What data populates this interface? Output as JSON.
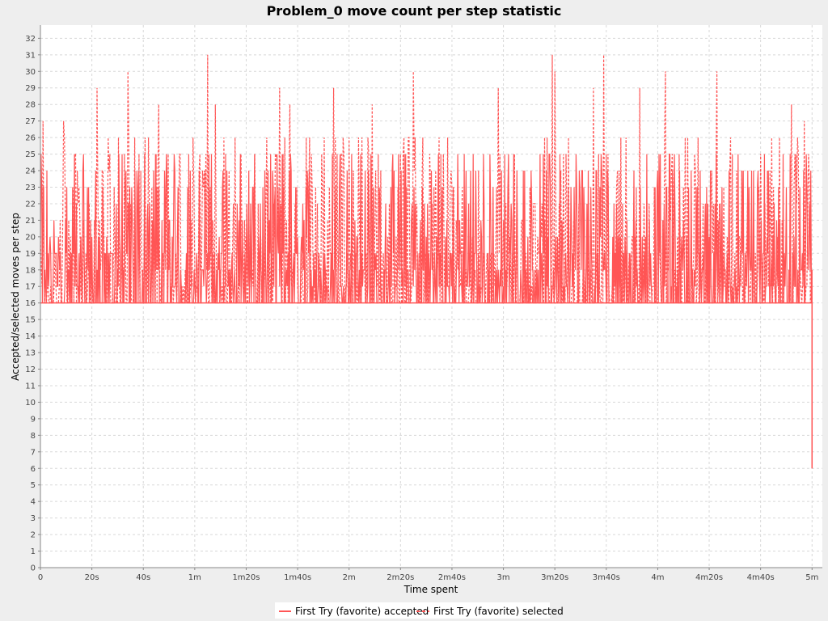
{
  "chart_data": {
    "type": "line",
    "title": "Problem_0 move count per step statistic",
    "xlabel": "Time spent",
    "ylabel": "Accepted/selected moves per step",
    "xlim": [
      0,
      304
    ],
    "ylim": [
      0,
      32.8
    ],
    "grid": true,
    "legend_position": "bottom",
    "x_ticks": [
      {
        "value": 0,
        "label": "0"
      },
      {
        "value": 20,
        "label": "20s"
      },
      {
        "value": 40,
        "label": "40s"
      },
      {
        "value": 60,
        "label": "1m"
      },
      {
        "value": 80,
        "label": "1m20s"
      },
      {
        "value": 100,
        "label": "1m40s"
      },
      {
        "value": 120,
        "label": "2m"
      },
      {
        "value": 140,
        "label": "2m20s"
      },
      {
        "value": 160,
        "label": "2m40s"
      },
      {
        "value": 180,
        "label": "3m"
      },
      {
        "value": 200,
        "label": "3m20s"
      },
      {
        "value": 220,
        "label": "3m40s"
      },
      {
        "value": 240,
        "label": "4m"
      },
      {
        "value": 260,
        "label": "4m20s"
      },
      {
        "value": 280,
        "label": "4m40s"
      },
      {
        "value": 300,
        "label": "5m"
      }
    ],
    "y_ticks": [
      0,
      1,
      2,
      3,
      4,
      5,
      6,
      7,
      8,
      9,
      10,
      11,
      12,
      13,
      14,
      15,
      16,
      17,
      18,
      19,
      20,
      21,
      22,
      23,
      24,
      25,
      26,
      27,
      28,
      29,
      30,
      31,
      32
    ],
    "series": [
      {
        "name": "First Try (favorite) accepted",
        "color": "#ff5555",
        "style": "solid",
        "baseline": 16,
        "typical_range": [
          16,
          25
        ],
        "x_end": 300,
        "final_value": 6
      },
      {
        "name": "First Try (favorite) selected",
        "color": "#ff5555",
        "style": "dashed",
        "baseline": 16,
        "typical_range": [
          16,
          26
        ],
        "x_end": 300,
        "peaks": [
          {
            "x": 1,
            "y": 27
          },
          {
            "x": 9,
            "y": 27
          },
          {
            "x": 22,
            "y": 29
          },
          {
            "x": 34,
            "y": 30
          },
          {
            "x": 46,
            "y": 28
          },
          {
            "x": 65,
            "y": 31
          },
          {
            "x": 68,
            "y": 28
          },
          {
            "x": 93,
            "y": 29
          },
          {
            "x": 97,
            "y": 28
          },
          {
            "x": 114,
            "y": 29
          },
          {
            "x": 129,
            "y": 28
          },
          {
            "x": 145,
            "y": 30
          },
          {
            "x": 178,
            "y": 29
          },
          {
            "x": 199,
            "y": 31
          },
          {
            "x": 200,
            "y": 30
          },
          {
            "x": 219,
            "y": 31
          },
          {
            "x": 215,
            "y": 29
          },
          {
            "x": 233,
            "y": 29
          },
          {
            "x": 243,
            "y": 30
          },
          {
            "x": 263,
            "y": 30
          },
          {
            "x": 292,
            "y": 28
          },
          {
            "x": 297,
            "y": 27
          }
        ]
      }
    ]
  }
}
